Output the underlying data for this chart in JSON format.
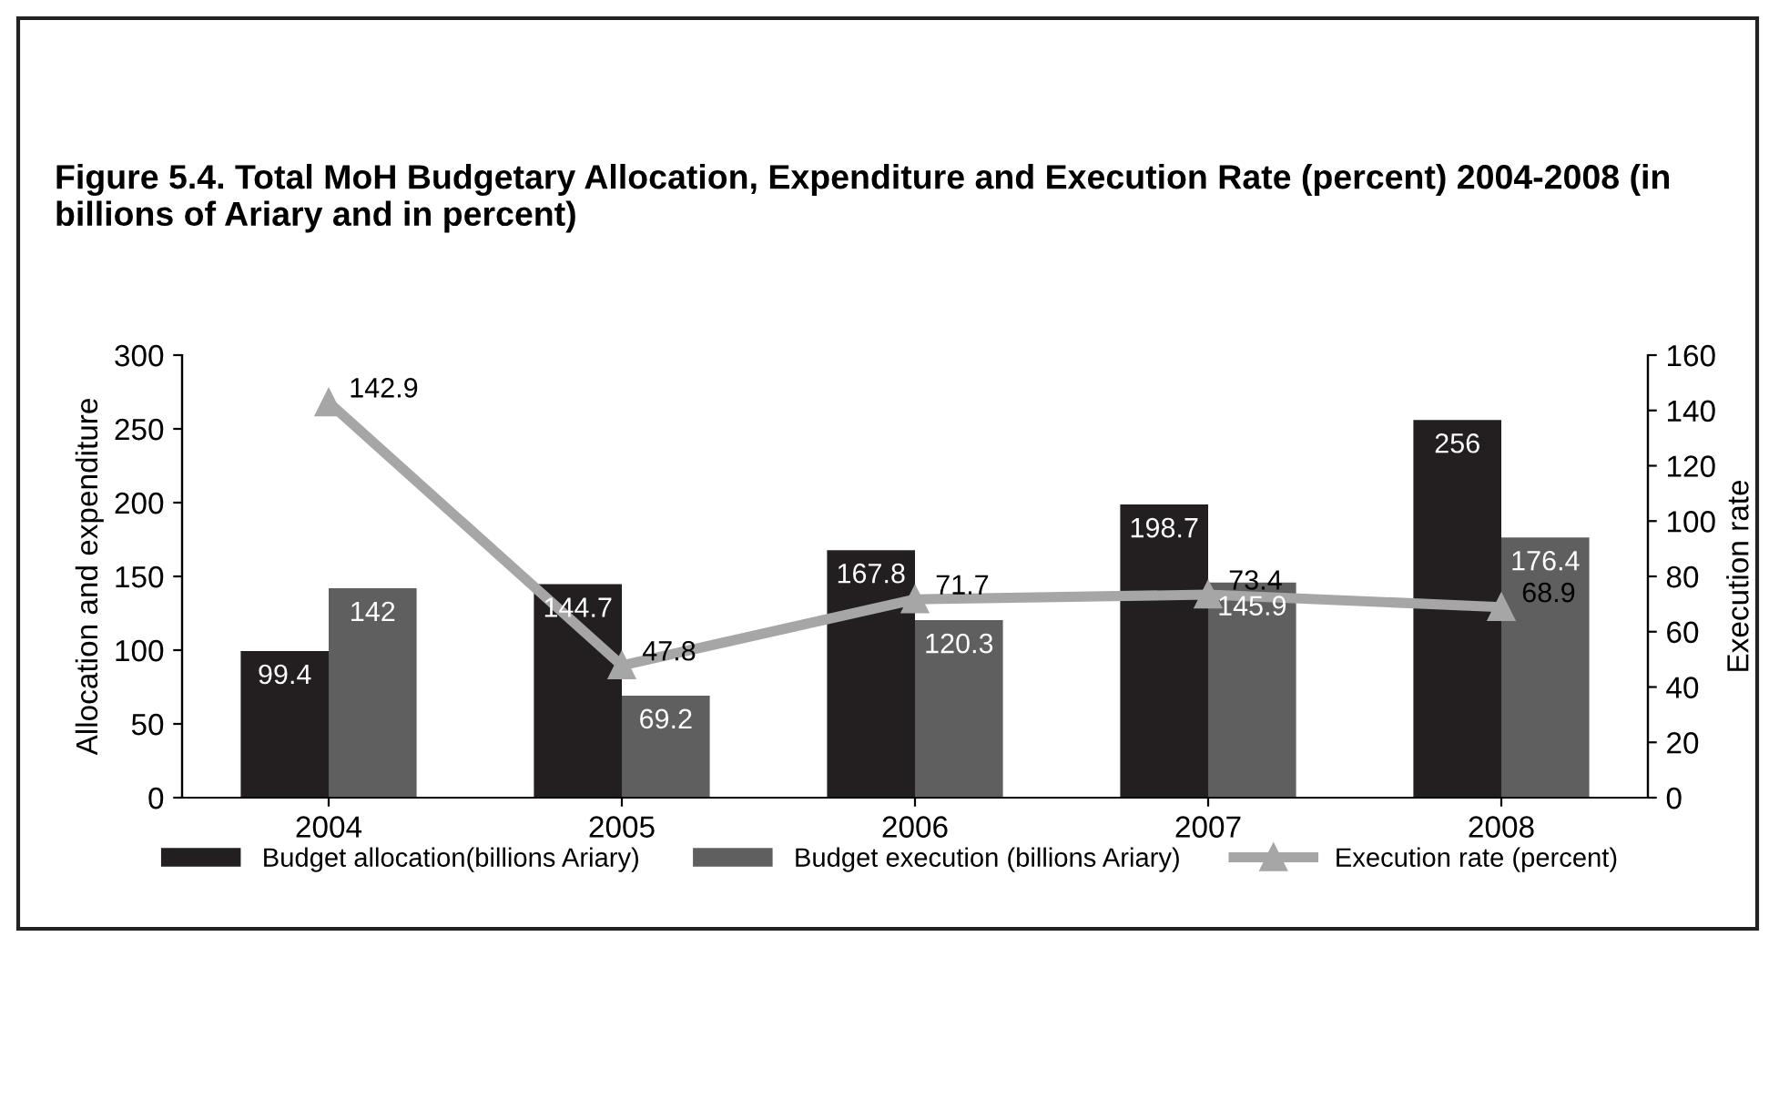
{
  "chart_data": {
    "type": "bar",
    "title": "Figure 5.4. Total MoH Budgetary Allocation, Expenditure and Execution Rate (percent) 2004-2008 (in billions of Ariary and in percent)",
    "categories": [
      "2004",
      "2005",
      "2006",
      "2007",
      "2008"
    ],
    "series": [
      {
        "name": "Budget allocation(billions Ariary)",
        "color": "#231f20",
        "values": [
          99.4,
          144.7,
          167.8,
          198.7,
          256
        ]
      },
      {
        "name": "Budget execution (billions Ariary)",
        "color": "#5f5f5f",
        "values": [
          142,
          69.2,
          120.3,
          145.9,
          176.4
        ]
      },
      {
        "name": "Execution rate (percent)",
        "type": "line",
        "axis": "y2",
        "color": "#a6a6a6",
        "marker": "triangle",
        "values": [
          142.9,
          47.8,
          71.7,
          73.4,
          68.9
        ]
      }
    ],
    "ylabel": "Allocation and expenditure",
    "y2label": "Execution rate",
    "ylim": [
      0,
      300
    ],
    "yticks": [
      0,
      50,
      100,
      150,
      200,
      250,
      300
    ],
    "y2lim": [
      0,
      160
    ],
    "y2ticks": [
      0,
      20,
      40,
      60,
      80,
      100,
      120,
      140,
      160
    ],
    "data_labels": true,
    "legend": "bottom",
    "grid": false
  }
}
